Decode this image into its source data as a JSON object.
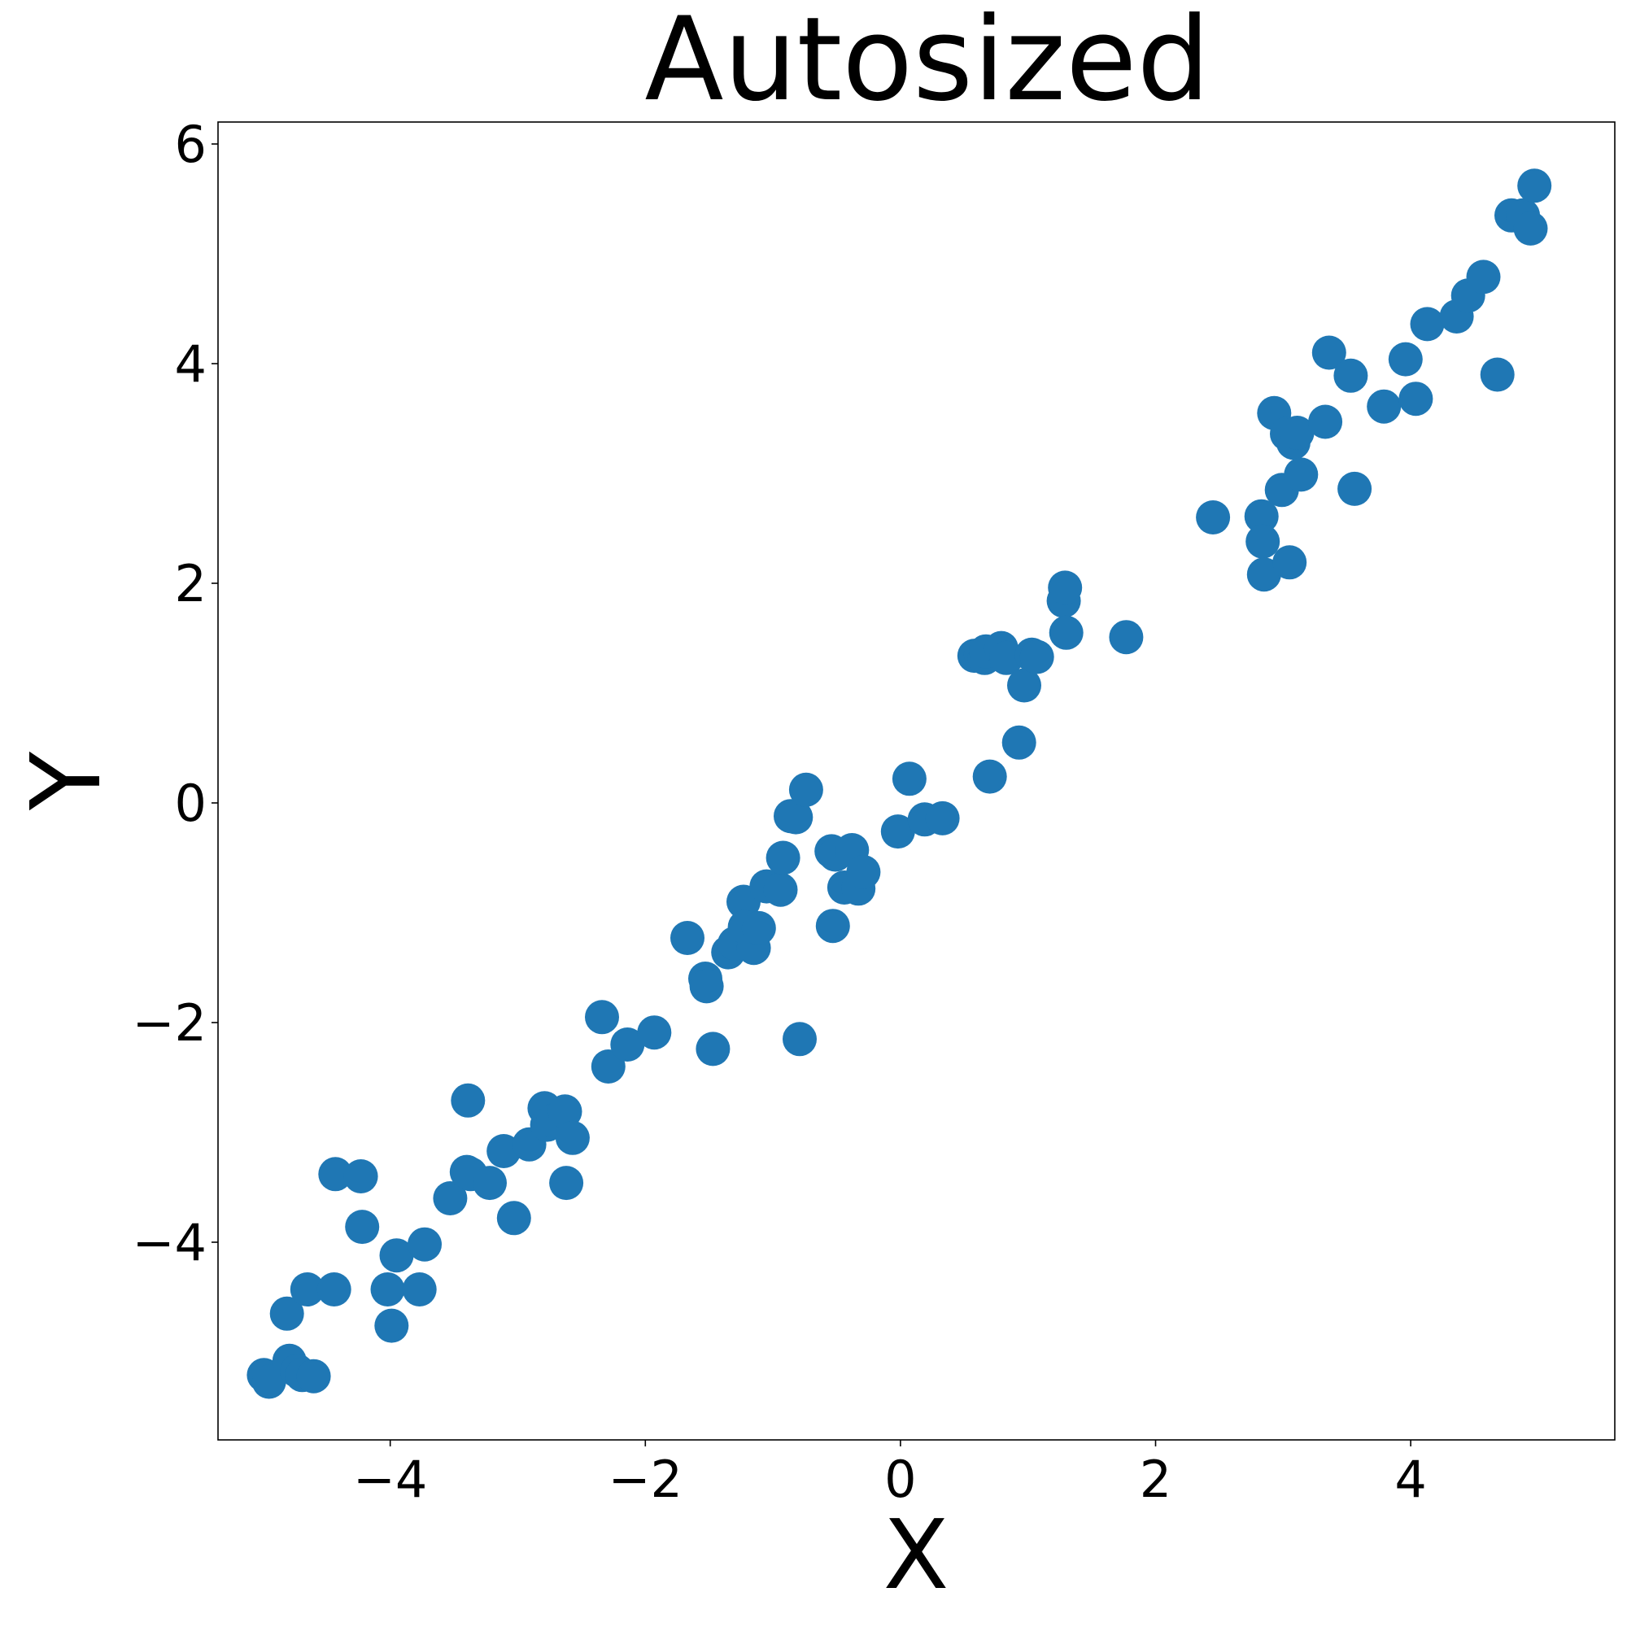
{
  "chart_data": {
    "type": "scatter",
    "title": "Autosized",
    "xlabel": "X",
    "ylabel": "Y",
    "xlim": [
      -5.35,
      5.6
    ],
    "ylim": [
      -5.8,
      6.2
    ],
    "xticks": [
      -4,
      -2,
      0,
      2,
      4
    ],
    "yticks": [
      -4,
      -2,
      0,
      2,
      4,
      6
    ],
    "xtick_labels": [
      "−4",
      "−2",
      "0",
      "2",
      "4"
    ],
    "ytick_labels": [
      "−4",
      "−2",
      "0",
      "2",
      "4",
      "6"
    ],
    "grid": false,
    "legend": "none",
    "marker_color": "#1f77b4",
    "series": [
      {
        "x": [
          -4.99,
          -4.95,
          -4.81,
          -4.79,
          -4.73,
          -4.69,
          -4.65,
          -4.6,
          -4.44,
          -4.43,
          -4.23,
          -4.22,
          -4.02,
          -3.99,
          -3.95,
          -3.77,
          -3.73,
          -3.53,
          -3.4,
          -3.39,
          -3.37,
          -3.22,
          -3.11,
          -3.03,
          -2.91,
          -2.79,
          -2.77,
          -2.72,
          -2.63,
          -2.62,
          -2.57,
          -2.34,
          -2.29,
          -2.14,
          -1.93,
          -1.67,
          -1.53,
          -1.52,
          -1.47,
          -1.35,
          -1.3,
          -1.23,
          -1.22,
          -1.15,
          -1.11,
          -1.05,
          -0.94,
          -0.92,
          -0.86,
          -0.82,
          -0.79,
          -0.74,
          -0.54,
          -0.53,
          -0.51,
          -0.44,
          -0.38,
          -0.33,
          -0.29,
          -0.02,
          0.07,
          0.19,
          0.33,
          0.58,
          0.63,
          0.66,
          0.67,
          0.7,
          0.79,
          0.83,
          0.93,
          0.97,
          1.03,
          1.07,
          1.28,
          1.29,
          1.3,
          1.77,
          2.45,
          2.83,
          2.84,
          2.85,
          2.93,
          2.99,
          3.03,
          3.05,
          3.08,
          3.11,
          3.14,
          3.33,
          3.36,
          3.53,
          3.56,
          3.79,
          3.96,
          4.04,
          4.13,
          4.36,
          4.45,
          4.57,
          4.68,
          4.79,
          4.88,
          4.94,
          4.97
        ],
        "y": [
          -5.21,
          -5.27,
          -4.65,
          -5.08,
          -5.17,
          -5.21,
          -4.43,
          -5.22,
          -4.43,
          -3.38,
          -3.4,
          -3.86,
          -4.43,
          -4.76,
          -4.12,
          -4.43,
          -4.02,
          -3.6,
          -3.36,
          -2.71,
          -3.38,
          -3.46,
          -3.17,
          -3.78,
          -3.11,
          -2.78,
          -2.93,
          -2.89,
          -2.81,
          -3.46,
          -3.05,
          -1.95,
          -2.4,
          -2.2,
          -2.09,
          -1.23,
          -1.6,
          -1.67,
          -2.24,
          -1.36,
          -1.28,
          -0.9,
          -1.13,
          -1.32,
          -1.14,
          -0.76,
          -0.79,
          -0.5,
          -0.12,
          -0.13,
          -2.15,
          0.12,
          -0.44,
          -1.12,
          -0.47,
          -0.77,
          -0.43,
          -0.78,
          -0.63,
          -0.26,
          0.22,
          -0.15,
          -0.14,
          1.34,
          1.35,
          1.32,
          1.38,
          0.24,
          1.41,
          1.32,
          0.55,
          1.07,
          1.35,
          1.33,
          1.84,
          1.96,
          1.55,
          1.51,
          2.6,
          2.61,
          2.38,
          2.08,
          3.55,
          2.85,
          3.36,
          2.19,
          3.28,
          3.37,
          2.99,
          3.47,
          4.1,
          3.89,
          2.86,
          3.61,
          4.04,
          3.68,
          4.36,
          4.43,
          4.62,
          4.79,
          3.9,
          5.35,
          5.35,
          5.23,
          5.62
        ]
      }
    ]
  }
}
